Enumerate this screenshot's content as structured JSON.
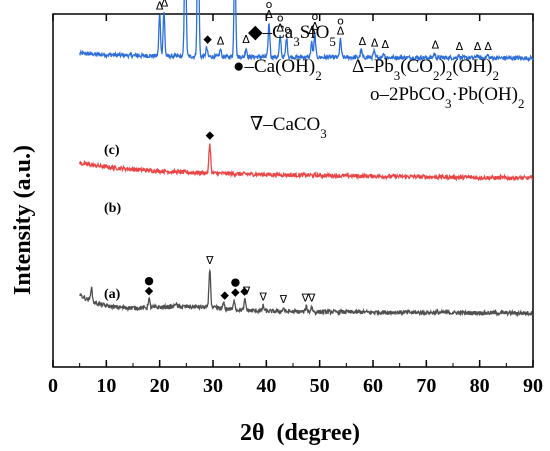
{
  "chart_data": {
    "type": "line",
    "xlabel_main": "2θ",
    "xlabel_unit": "(degree)",
    "ylabel": "Intensity (a.u.)",
    "xlim": [
      0,
      90
    ],
    "x_ticks": [
      0,
      10,
      20,
      30,
      40,
      50,
      60,
      70,
      80,
      90
    ],
    "series": [
      {
        "name": "(c)",
        "color": "#2e6fd6",
        "baseline_rel": 0.88,
        "peaks": [
          [
            20.0,
            0.28
          ],
          [
            20.8,
            0.3
          ],
          [
            24.8,
            0.88
          ],
          [
            27.2,
            1.0
          ],
          [
            28.8,
            0.06
          ],
          [
            31.4,
            0.05
          ],
          [
            34.1,
            0.68
          ],
          [
            36.2,
            0.06
          ],
          [
            40.5,
            0.23
          ],
          [
            42.6,
            0.14
          ],
          [
            43.8,
            0.13
          ],
          [
            48.5,
            0.1
          ],
          [
            49.1,
            0.15
          ],
          [
            53.9,
            0.12
          ],
          [
            57.8,
            0.05
          ],
          [
            60.2,
            0.04
          ],
          [
            62.0,
            0.03
          ],
          [
            71.5,
            0.03
          ],
          [
            76.0,
            0.02
          ],
          [
            79.5,
            0.02
          ],
          [
            81.5,
            0.02
          ]
        ]
      },
      {
        "name": "(b)",
        "color": "#e84646",
        "baseline_rel": 0.55,
        "peaks": [
          [
            29.4,
            0.14
          ]
        ]
      },
      {
        "name": "(a)",
        "color": "#505050",
        "baseline_rel": 0.16,
        "peaks": [
          [
            7.2,
            0.08
          ],
          [
            18.0,
            0.05
          ],
          [
            23.0,
            0.02
          ],
          [
            29.4,
            0.22
          ],
          [
            32.0,
            0.03
          ],
          [
            34.0,
            0.05
          ],
          [
            36.0,
            0.06
          ],
          [
            39.4,
            0.03
          ],
          [
            43.2,
            0.02
          ],
          [
            47.5,
            0.03
          ],
          [
            48.5,
            0.03
          ]
        ]
      }
    ],
    "legend": [
      {
        "symbol": "◆",
        "text_parts": [
          "–Ca",
          "3",
          "SiO",
          "5"
        ]
      },
      {
        "symbol": "●",
        "text_parts": [
          "–Ca(OH)",
          "2"
        ]
      },
      {
        "symbol": "∇",
        "text_parts": [
          "–CaCO",
          "3"
        ]
      },
      {
        "symbol": "Δ",
        "text_parts": [
          "–Pb",
          "3",
          "(CO",
          "2",
          ")",
          "2",
          "(OH)",
          "2"
        ]
      },
      {
        "symbol": "o",
        "text_parts": [
          "–2PbCO",
          "3",
          "·Pb(OH)",
          "2"
        ]
      }
    ],
    "peak_markers": [
      {
        "series": "(c)",
        "x": 20.0,
        "symbols": [
          "Δ",
          "o"
        ]
      },
      {
        "series": "(c)",
        "x": 20.9,
        "symbols": [
          "Δ",
          "o"
        ]
      },
      {
        "series": "(c)",
        "x": 24.8,
        "symbols": [
          "Δ",
          "o"
        ]
      },
      {
        "series": "(c)",
        "x": 27.2,
        "symbols": [
          "Δ",
          "o"
        ]
      },
      {
        "series": "(c)",
        "x": 29.0,
        "symbols": [
          "◆"
        ]
      },
      {
        "series": "(c)",
        "x": 31.4,
        "symbols": [
          "Δ"
        ]
      },
      {
        "series": "(c)",
        "x": 34.1,
        "symbols": [
          "Δ",
          "o"
        ]
      },
      {
        "series": "(c)",
        "x": 36.2,
        "symbols": [
          "Δ"
        ]
      },
      {
        "series": "(c)",
        "x": 40.5,
        "symbols": [
          "Δ",
          "o"
        ]
      },
      {
        "series": "(c)",
        "x": 42.6,
        "symbols": [
          "Δ",
          "o"
        ]
      },
      {
        "series": "(c)",
        "x": 44.0,
        "symbols": [
          "o"
        ]
      },
      {
        "series": "(c)",
        "x": 48.6,
        "symbols": [
          "Δ"
        ]
      },
      {
        "series": "(c)",
        "x": 49.1,
        "symbols": [
          "Δ",
          "o"
        ]
      },
      {
        "series": "(c)",
        "x": 53.9,
        "symbols": [
          "Δ",
          "o"
        ]
      },
      {
        "series": "(c)",
        "x": 58.0,
        "symbols": [
          "Δ"
        ]
      },
      {
        "series": "(c)",
        "x": 60.3,
        "symbols": [
          "Δ"
        ]
      },
      {
        "series": "(c)",
        "x": 62.3,
        "symbols": [
          "Δ"
        ]
      },
      {
        "series": "(c)",
        "x": 71.7,
        "symbols": [
          "Δ"
        ]
      },
      {
        "series": "(c)",
        "x": 76.2,
        "symbols": [
          "Δ"
        ]
      },
      {
        "series": "(c)",
        "x": 79.6,
        "symbols": [
          "Δ"
        ]
      },
      {
        "series": "(c)",
        "x": 81.6,
        "symbols": [
          "Δ"
        ]
      },
      {
        "series": "(b)",
        "x": 29.4,
        "symbols": [
          "◆"
        ]
      },
      {
        "series": "(a)",
        "x": 18.0,
        "symbols": [
          "◆",
          "●"
        ]
      },
      {
        "series": "(a)",
        "x": 29.4,
        "symbols": [
          "∇"
        ]
      },
      {
        "series": "(a)",
        "x": 32.2,
        "symbols": [
          "◆"
        ]
      },
      {
        "series": "(a)",
        "x": 34.2,
        "symbols": [
          "◆",
          "●"
        ]
      },
      {
        "series": "(a)",
        "x": 35.9,
        "symbols": [
          "◆"
        ]
      },
      {
        "series": "(a)",
        "x": 36.3,
        "symbols": [
          "∇"
        ]
      },
      {
        "series": "(a)",
        "x": 39.4,
        "symbols": [
          "∇"
        ]
      },
      {
        "series": "(a)",
        "x": 43.2,
        "symbols": [
          "∇"
        ]
      },
      {
        "series": "(a)",
        "x": 47.3,
        "symbols": [
          "∇"
        ]
      },
      {
        "series": "(a)",
        "x": 48.5,
        "symbols": [
          "∇"
        ]
      }
    ]
  }
}
